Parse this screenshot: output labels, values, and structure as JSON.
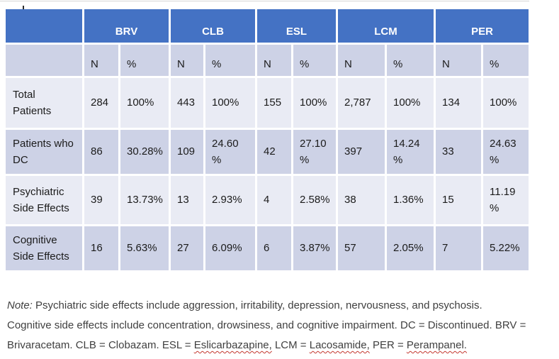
{
  "colors": {
    "header_bg": "#4472c4",
    "band_dark": "#cdd2e6",
    "band_light": "#e9ebf4",
    "header_text": "#ffffff",
    "body_text": "#1b1b1b",
    "note_text": "#3f3f3f",
    "spellcheck_squiggle": "#c4372f"
  },
  "table": {
    "corner_label": "",
    "groups": [
      {
        "label": "BRV"
      },
      {
        "label": "CLB"
      },
      {
        "label": "ESL"
      },
      {
        "label": "LCM"
      },
      {
        "label": "PER"
      }
    ],
    "sub_columns": [
      "N",
      "%",
      "N",
      "%",
      "N",
      "%",
      "N",
      "%",
      "N",
      "%"
    ],
    "rows": [
      {
        "label": "Total\nPatients",
        "values": [
          "284",
          "100%",
          "443",
          "100%",
          "155",
          "100%",
          "2,787",
          "100%",
          "134",
          "100%"
        ]
      },
      {
        "label": "Patients who\nDC",
        "values": [
          "86",
          "30.28%",
          "109",
          "24.60\n%",
          "42",
          "27.10\n%",
          "397",
          "14.24\n%",
          "33",
          "24.63\n%"
        ]
      },
      {
        "label": "Psychiatric\nSide Effects",
        "values": [
          "39",
          "13.73%",
          "13",
          "2.93%",
          "4",
          "2.58%",
          "38",
          "1.36%",
          "15",
          "11.19\n%"
        ]
      },
      {
        "label": "Cognitive\nSide Effects",
        "values": [
          "16",
          "5.63%",
          "27",
          "6.09%",
          "6",
          "3.87%",
          "57",
          "2.05%",
          "7",
          "5.22%"
        ]
      }
    ]
  },
  "note": {
    "segments": [
      {
        "text": "Note:",
        "italic": true
      },
      {
        "text": " Psychiatric side effects include aggression, irritability, depression, nervousness, and psychosis. Cognitive side effects include concentration, drowsiness, and cognitive impairment. DC = Discontinued. BRV = Brivaracetam. CLB = Clobazam. ESL = "
      },
      {
        "text": "Eslicarbazapine,",
        "misspelled": true
      },
      {
        "text": " LCM = "
      },
      {
        "text": "Lacosamide,",
        "misspelled": true
      },
      {
        "text": " PER = "
      },
      {
        "text": "Perampanel.",
        "misspelled": true
      }
    ]
  }
}
